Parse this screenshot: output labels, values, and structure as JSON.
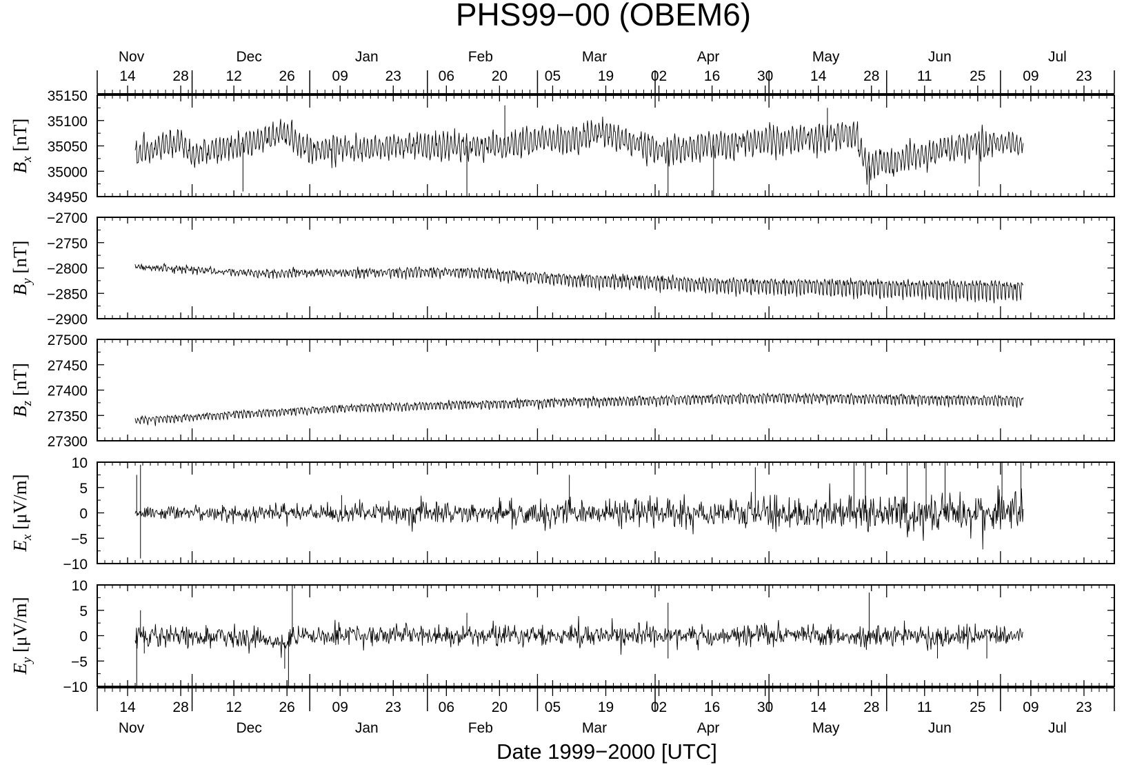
{
  "chart_data": {
    "type": "line",
    "title": "PHS99−00 (OBEM6)",
    "xlabel": "Date 1999−2000 [UTC]",
    "x_axis": {
      "type": "date",
      "range": [
        "1999-11-06",
        "2000-07-31"
      ],
      "day_ticks": [
        {
          "date": "1999-11-14",
          "label": "14"
        },
        {
          "date": "1999-11-28",
          "label": "28"
        },
        {
          "date": "1999-12-12",
          "label": "12"
        },
        {
          "date": "1999-12-26",
          "label": "26"
        },
        {
          "date": "2000-01-09",
          "label": "09"
        },
        {
          "date": "2000-01-23",
          "label": "23"
        },
        {
          "date": "2000-02-06",
          "label": "06"
        },
        {
          "date": "2000-02-20",
          "label": "20"
        },
        {
          "date": "2000-03-05",
          "label": "05"
        },
        {
          "date": "2000-03-19",
          "label": "19"
        },
        {
          "date": "2000-04-02",
          "label": "02"
        },
        {
          "date": "2000-04-16",
          "label": "16"
        },
        {
          "date": "2000-04-30",
          "label": "30"
        },
        {
          "date": "2000-05-14",
          "label": "14"
        },
        {
          "date": "2000-05-28",
          "label": "28"
        },
        {
          "date": "2000-06-11",
          "label": "11"
        },
        {
          "date": "2000-06-25",
          "label": "25"
        },
        {
          "date": "2000-07-09",
          "label": "09"
        },
        {
          "date": "2000-07-23",
          "label": "23"
        }
      ],
      "month_labels": [
        {
          "date": "1999-11-15",
          "label": "Nov"
        },
        {
          "date": "1999-12-16",
          "label": "Dec"
        },
        {
          "date": "2000-01-16",
          "label": "Jan"
        },
        {
          "date": "2000-02-15",
          "label": "Feb"
        },
        {
          "date": "2000-03-16",
          "label": "Mar"
        },
        {
          "date": "2000-04-15",
          "label": "Apr"
        },
        {
          "date": "2000-05-16",
          "label": "May"
        },
        {
          "date": "2000-06-15",
          "label": "Jun"
        },
        {
          "date": "2000-07-16",
          "label": "Jul"
        }
      ],
      "month_boundaries": [
        "1999-12-01",
        "2000-01-01",
        "2000-02-01",
        "2000-03-01",
        "2000-04-01",
        "2000-05-01",
        "2000-06-01",
        "2000-07-01"
      ]
    },
    "data_range": [
      "1999-11-16",
      "2000-07-07"
    ],
    "panels": [
      {
        "id": "bx",
        "ylabel": {
          "sym": "B",
          "sub": "x",
          "unit": "[nT]"
        },
        "ylim": [
          34950,
          35150
        ],
        "yticks": [
          34950,
          35000,
          35050,
          35100,
          35150
        ],
        "trend": [
          {
            "date": "1999-11-16",
            "value": 35030
          },
          {
            "date": "1999-11-28",
            "value": 35060
          },
          {
            "date": "1999-12-01",
            "value": 35030
          },
          {
            "date": "1999-12-26",
            "value": 35075
          },
          {
            "date": "1999-12-31",
            "value": 35040
          },
          {
            "date": "2000-01-26",
            "value": 35050
          },
          {
            "date": "2000-02-20",
            "value": 35050
          },
          {
            "date": "2000-03-19",
            "value": 35075
          },
          {
            "date": "2000-04-02",
            "value": 35040
          },
          {
            "date": "2000-04-30",
            "value": 35060
          },
          {
            "date": "2000-05-24",
            "value": 35070
          },
          {
            "date": "2000-05-27",
            "value": 35010
          },
          {
            "date": "2000-06-25",
            "value": 35055
          },
          {
            "date": "2000-07-07",
            "value": 35055
          }
        ],
        "daily_amplitude": 20,
        "noise": 8,
        "spikes": [
          {
            "date": "1999-12-14",
            "value": 34960
          },
          {
            "date": "2000-02-11",
            "value": 34950
          },
          {
            "date": "2000-02-21",
            "value": 35130
          },
          {
            "date": "2000-04-04",
            "value": 34950
          },
          {
            "date": "2000-04-16",
            "value": 34950
          },
          {
            "date": "2000-05-16",
            "value": 35125
          },
          {
            "date": "2000-05-27",
            "value": 34950
          },
          {
            "date": "2000-06-25",
            "value": 34970
          }
        ]
      },
      {
        "id": "by",
        "ylabel": {
          "sym": "B",
          "sub": "y",
          "unit": "[nT]"
        },
        "ylim": [
          -2900,
          -2700
        ],
        "yticks": [
          -2900,
          -2850,
          -2800,
          -2750,
          -2700
        ],
        "trend": [
          {
            "date": "1999-11-16",
            "value": -2797
          },
          {
            "date": "1999-12-20",
            "value": -2808
          },
          {
            "date": "2000-01-20",
            "value": -2805
          },
          {
            "date": "2000-02-10",
            "value": -2803
          },
          {
            "date": "2000-03-05",
            "value": -2815
          },
          {
            "date": "2000-04-16",
            "value": -2825
          },
          {
            "date": "2000-07-07",
            "value": -2833
          }
        ],
        "amp_start": 6,
        "amp_end": 45,
        "noise": 3,
        "spikes": []
      },
      {
        "id": "bz",
        "ylabel": {
          "sym": "B",
          "sub": "z",
          "unit": "[nT]"
        },
        "ylim": [
          27300,
          27500
        ],
        "yticks": [
          27300,
          27350,
          27400,
          27450,
          27500
        ],
        "trend": [
          {
            "date": "1999-11-16",
            "value": 27343
          },
          {
            "date": "2000-01-09",
            "value": 27368
          },
          {
            "date": "2000-03-05",
            "value": 27380
          },
          {
            "date": "2000-04-30",
            "value": 27390
          },
          {
            "date": "2000-07-07",
            "value": 27385
          }
        ],
        "amp_start": 14,
        "amp_end": 22,
        "noise": 2,
        "spikes": []
      },
      {
        "id": "ex",
        "ylabel": {
          "sym": "E",
          "sub": "x",
          "unit": "[μV/m]"
        },
        "ylim": [
          -10,
          10
        ],
        "yticks": [
          -10,
          -5,
          0,
          5,
          10
        ],
        "trend": [
          {
            "date": "1999-11-16",
            "value": 0
          },
          {
            "date": "2000-07-07",
            "value": 0
          }
        ],
        "noise_start": 0.6,
        "noise_end": 2.0,
        "spikes": [
          {
            "date": "1999-11-16",
            "value": 7.5
          },
          {
            "date": "1999-11-17",
            "value": -9
          },
          {
            "date": "1999-11-17",
            "value": 9.5
          },
          {
            "date": "2000-01-09",
            "value": 3.5
          },
          {
            "date": "2000-03-09",
            "value": 7.5
          },
          {
            "date": "2000-04-27",
            "value": 9
          },
          {
            "date": "2000-05-23",
            "value": 10
          },
          {
            "date": "2000-05-26",
            "value": 10
          },
          {
            "date": "2000-06-06",
            "value": 10
          },
          {
            "date": "2000-06-11",
            "value": 10
          },
          {
            "date": "2000-06-16",
            "value": 10
          },
          {
            "date": "2000-07-01",
            "value": 10
          },
          {
            "date": "2000-07-06",
            "value": 10
          }
        ]
      },
      {
        "id": "ey",
        "ylabel": {
          "sym": "E",
          "sub": "y",
          "unit": "[μV/m]"
        },
        "ylim": [
          -10,
          10
        ],
        "yticks": [
          -10,
          -5,
          0,
          5,
          10
        ],
        "trend": [
          {
            "date": "1999-11-16",
            "value": 0
          },
          {
            "date": "1999-12-20",
            "value": -0.5
          },
          {
            "date": "1999-12-24",
            "value": -2
          },
          {
            "date": "1999-12-28",
            "value": 0
          },
          {
            "date": "2000-07-07",
            "value": 0
          }
        ],
        "noise_start": 1.0,
        "noise_end": 1.0,
        "spikes": [
          {
            "date": "1999-11-16",
            "value": -10
          },
          {
            "date": "1999-11-17",
            "value": 5
          },
          {
            "date": "1999-11-18",
            "value": -3.5
          },
          {
            "date": "1999-12-25",
            "value": -6.5
          },
          {
            "date": "1999-12-26",
            "value": -10
          },
          {
            "date": "1999-12-27",
            "value": 10
          },
          {
            "date": "2000-02-11",
            "value": 4.5
          },
          {
            "date": "2000-04-04",
            "value": 6.5
          },
          {
            "date": "2000-04-04",
            "value": -4.5
          },
          {
            "date": "2000-05-27",
            "value": 8.5
          },
          {
            "date": "2000-06-14",
            "value": -4.5
          },
          {
            "date": "2000-06-27",
            "value": -4.5
          }
        ]
      }
    ]
  }
}
